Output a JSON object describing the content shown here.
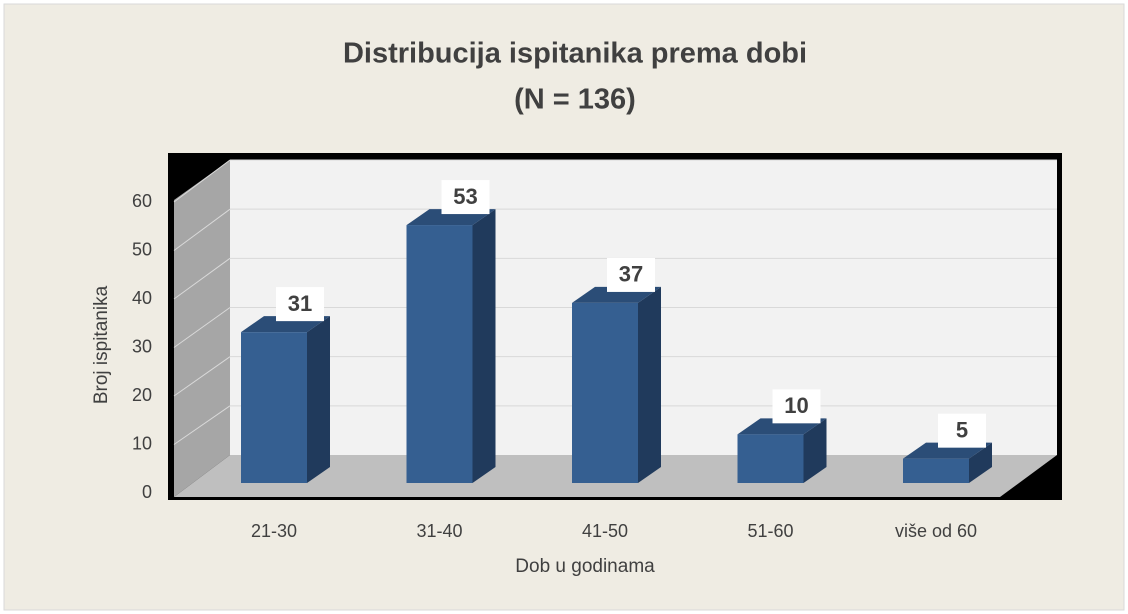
{
  "chart_data": {
    "type": "bar3d",
    "title": "Distribucija ispitanika prema dobi",
    "subtitle": "(N = 136)",
    "x_label": "Dob u godinama",
    "y_label": "Broj ispitanika",
    "categories": [
      "21-30",
      "31-40",
      "41-50",
      "51-60",
      "više od 60"
    ],
    "values": [
      31,
      53,
      37,
      10,
      5
    ],
    "color": "#355f91",
    "ylim": [
      0,
      60
    ],
    "yticks": [
      0,
      10,
      20,
      30,
      40,
      50,
      60
    ],
    "grid": true
  }
}
